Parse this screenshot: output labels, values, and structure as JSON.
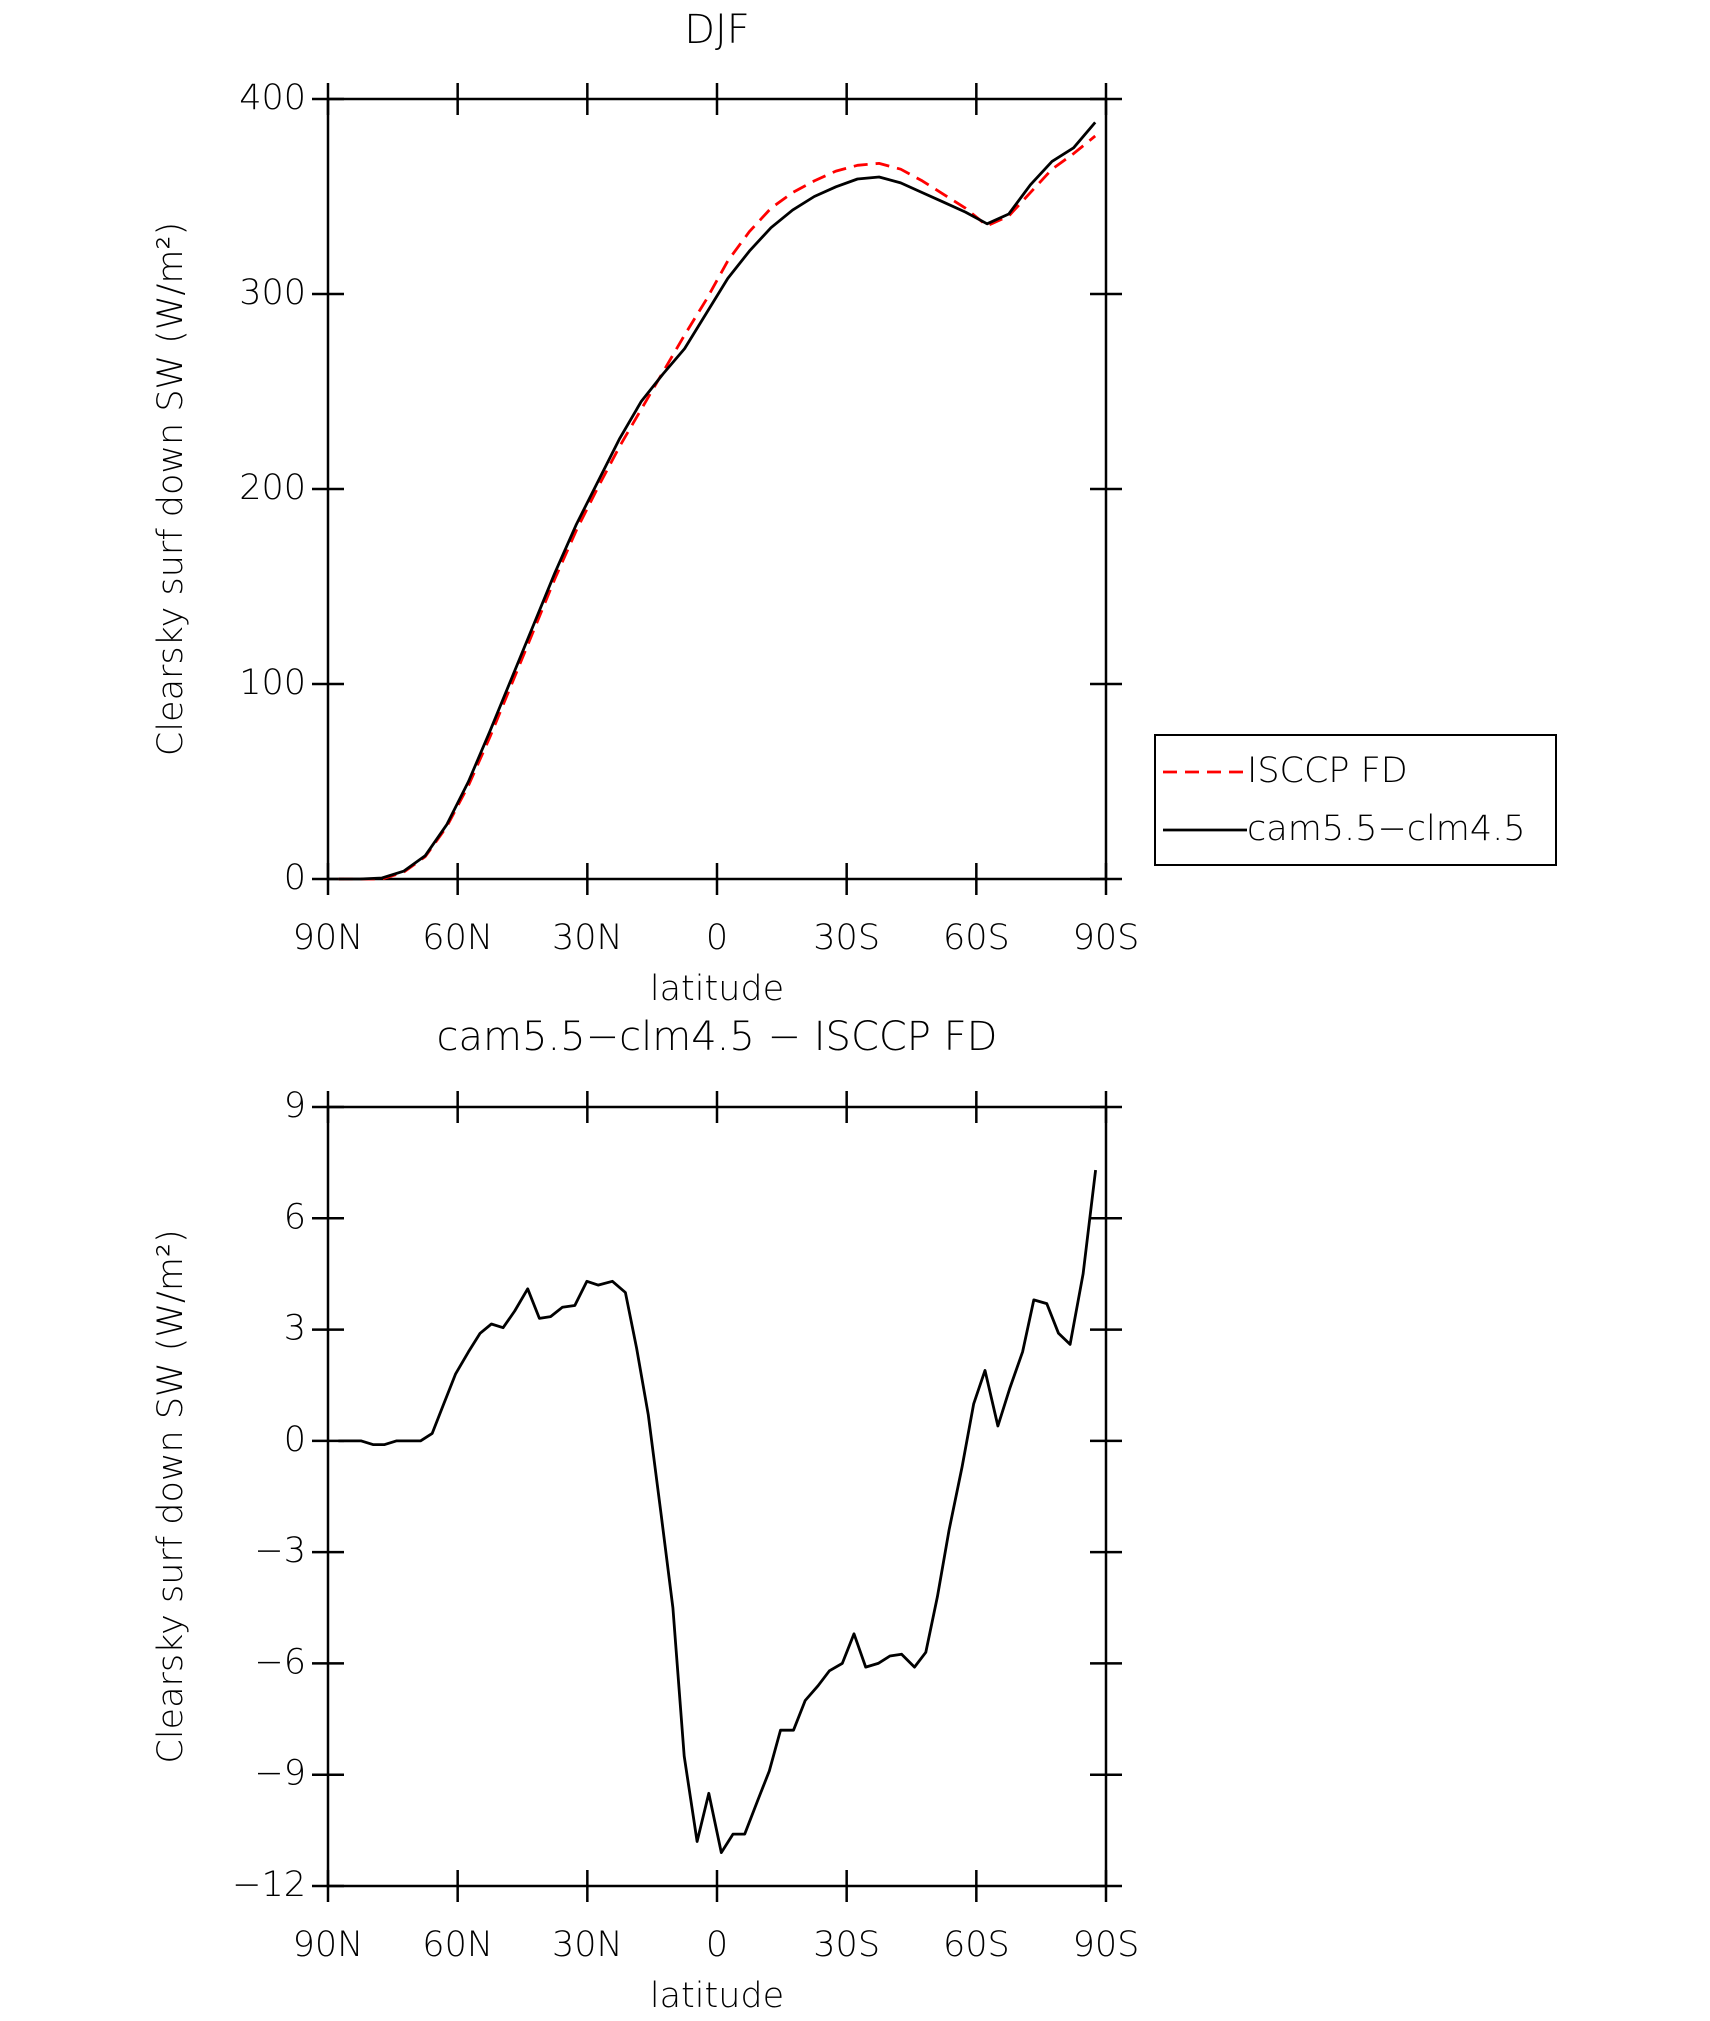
{
  "chart_data": [
    {
      "type": "line",
      "title": "DJF",
      "xlabel": "latitude",
      "ylabel": "Clearsky surf down SW (W/m²)",
      "x": [
        87.5,
        82.5,
        77.5,
        72.5,
        67.5,
        62.5,
        57.5,
        52.5,
        47.5,
        42.5,
        37.5,
        32.5,
        27.5,
        22.5,
        17.5,
        12.5,
        7.5,
        2.5,
        -2.5,
        -7.5,
        -12.5,
        -17.5,
        -22.5,
        -27.5,
        -32.5,
        -37.5,
        -42.5,
        -47.5,
        -52.5,
        -57.5,
        -62.5,
        -67.5,
        -72.5,
        -77.5,
        -82.5,
        -87.5
      ],
      "series": [
        {
          "name": "ISCCP FD",
          "color": "#ff0000",
          "linestyle": "dashed",
          "values": [
            0,
            0,
            0,
            3.5,
            11.5,
            27,
            48,
            73,
            100,
            127,
            154,
            179,
            201,
            222,
            241,
            260,
            279,
            297,
            317,
            332,
            344,
            352,
            358,
            363,
            366,
            367,
            364,
            358,
            351,
            344,
            335,
            340,
            352,
            364,
            372,
            381
          ]
        },
        {
          "name": "cam5.5−clm4.5",
          "color": "#000000",
          "linestyle": "solid",
          "values": [
            0,
            0,
            0.5,
            4,
            12,
            28,
            50,
            76,
            103,
            130,
            157,
            182,
            204,
            226,
            245,
            259,
            272,
            290,
            308,
            322,
            334,
            343,
            350,
            355,
            359,
            360,
            357,
            352,
            347,
            342,
            336,
            341,
            356,
            368,
            375,
            388
          ]
        }
      ],
      "xlim": [
        90,
        -90
      ],
      "xticks": [
        {
          "value": 90,
          "label": "90N"
        },
        {
          "value": 60,
          "label": "60N"
        },
        {
          "value": 30,
          "label": "30N"
        },
        0,
        {
          "value": -30,
          "label": "30S"
        },
        {
          "value": -60,
          "label": "60S"
        },
        {
          "value": -90,
          "label": "90S"
        }
      ],
      "ylim": [
        0,
        400
      ],
      "yticks": [
        0,
        100,
        200,
        300,
        400
      ],
      "legend": "right"
    },
    {
      "type": "line",
      "title": "cam5.5−clm4.5 − ISCCP FD",
      "xlabel": "latitude",
      "ylabel": "Clearsky surf down SW (W/m²)",
      "x": [
        87.6,
        85.0,
        82.3,
        79.6,
        76.9,
        74.2,
        71.6,
        68.6,
        65.9,
        63.2,
        60.5,
        57.5,
        54.8,
        52.2,
        49.5,
        46.8,
        43.8,
        41.1,
        38.5,
        35.8,
        32.9,
        30.1,
        27.5,
        24.2,
        21.2,
        18.6,
        15.9,
        12.9,
        10.2,
        7.6,
        4.6,
        1.9,
        -1.0,
        -3.7,
        -6.4,
        -9.4,
        -12.1,
        -14.7,
        -17.7,
        -20.4,
        -23.4,
        -26.0,
        -29.0,
        -31.7,
        -34.4,
        -37.3,
        -40.0,
        -42.7,
        -45.7,
        -48.3,
        -51.0,
        -53.7,
        -56.7,
        -59.4,
        -62.0,
        -65.0,
        -67.7,
        -70.7,
        -73.3,
        -76.3,
        -79.0,
        -81.7,
        -84.7,
        -87.6
      ],
      "series": [
        {
          "color": "#000000",
          "linestyle": "solid",
          "values": [
            0,
            0,
            0,
            -0.1,
            -0.1,
            0,
            0,
            0,
            0.2,
            1,
            1.8,
            2.4,
            2.9,
            3.15,
            3.05,
            3.5,
            4.1,
            3.3,
            3.35,
            3.6,
            3.65,
            4.3,
            4.2,
            4.3,
            4.0,
            2.5,
            0.7,
            -2,
            -4.5,
            -8.5,
            -10.8,
            -9.5,
            -11.1,
            -10.6,
            -10.6,
            -9.7,
            -8.9,
            -7.8,
            -7.8,
            -7.0,
            -6.6,
            -6.2,
            -6.0,
            -5.2,
            -6.1,
            -6.0,
            -5.8,
            -5.75,
            -6.1,
            -5.7,
            -4.2,
            -2.4,
            -0.7,
            1.0,
            1.9,
            0.4,
            1.4,
            2.4,
            3.8,
            3.7,
            2.9,
            2.6,
            4.5,
            7.3
          ]
        }
      ],
      "xlim": [
        90,
        -90
      ],
      "xticks": [
        {
          "value": 90,
          "label": "90N"
        },
        {
          "value": 60,
          "label": "60N"
        },
        {
          "value": 30,
          "label": "30N"
        },
        0,
        {
          "value": -30,
          "label": "30S"
        },
        {
          "value": -60,
          "label": "60S"
        },
        {
          "value": -90,
          "label": "90S"
        }
      ],
      "ylim": [
        -12,
        9
      ],
      "yticks": [
        {
          "value": -12,
          "label": "−12"
        },
        {
          "value": -9,
          "label": "−9"
        },
        {
          "value": -6,
          "label": "−6"
        },
        {
          "value": -3,
          "label": "−3"
        },
        0,
        3,
        6,
        9
      ]
    }
  ]
}
